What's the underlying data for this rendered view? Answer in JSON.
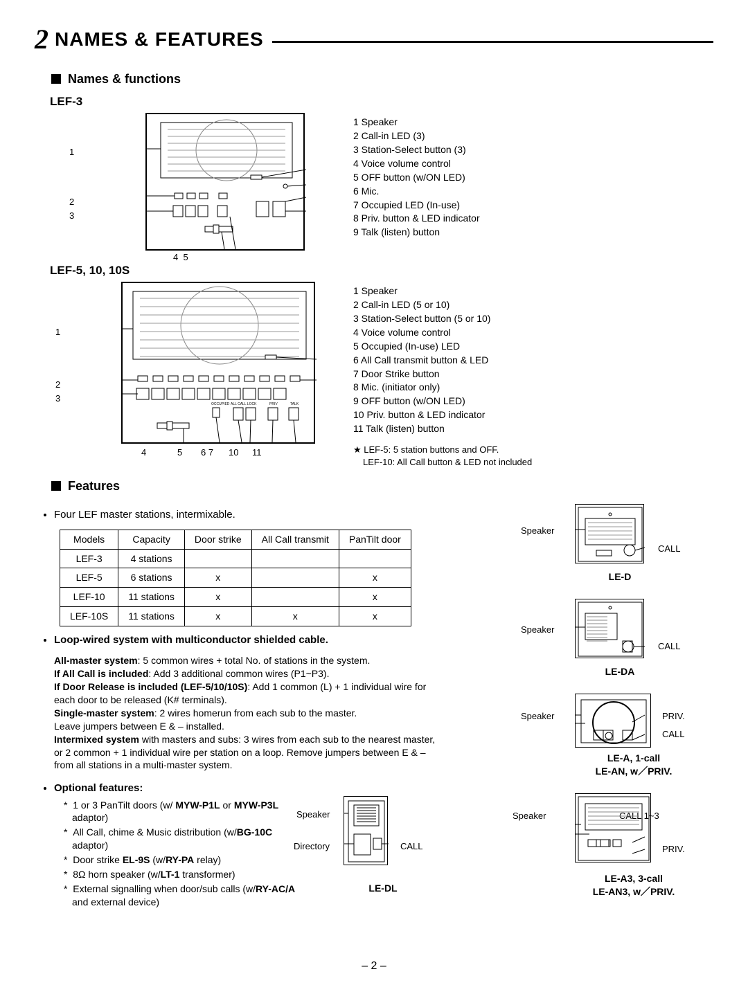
{
  "page": {
    "number_prefix": "2",
    "title": "NAMES & FEATURES",
    "page_footer": "– 2 –"
  },
  "section_names_functions": "Names & functions",
  "section_features": "Features",
  "lef3": {
    "label": "LEF-3",
    "parts": [
      "1  Speaker",
      "2  Call-in LED (3)",
      "3  Station-Select button (3)",
      "4  Voice volume control",
      "5  OFF button (w/ON LED)",
      "6  Mic.",
      "7  Occupied LED (In-use)",
      "8  Priv. button & LED indicator",
      "9  Talk (listen) button"
    ]
  },
  "lef5": {
    "label": "LEF-5, 10, 10S",
    "parts": [
      "1  Speaker",
      "2  Call-in LED (5 or 10)",
      "3  Station-Select button (5 or 10)",
      "4  Voice volume control",
      "5  Occupied (In-use) LED",
      "6  All Call transmit button & LED",
      "7  Door Strike button",
      "8  Mic. (initiator only)",
      "9  OFF button (w/ON LED)",
      "10 Priv. button & LED indicator",
      "11 Talk (listen) button"
    ],
    "note1": "★ LEF-5: 5 station buttons and OFF.",
    "note2": "LEF-10: All Call button & LED not included"
  },
  "features_intro": "Four LEF master stations, intermixable.",
  "model_table": {
    "headers": [
      "Models",
      "Capacity",
      "Door strike",
      "All Call transmit",
      "PanTilt door"
    ],
    "rows": [
      [
        "LEF-3",
        "4 stations",
        "",
        "",
        ""
      ],
      [
        "LEF-5",
        "6 stations",
        "x",
        "",
        "x"
      ],
      [
        "LEF-10",
        "11 stations",
        "x",
        "",
        "x"
      ],
      [
        "LEF-10S",
        "11 stations",
        "x",
        "x",
        "x"
      ]
    ]
  },
  "loop_hdr": "Loop-wired system with multiconductor shielded cable.",
  "loop_body": {
    "l1b": "All-master system",
    "l1": ": 5 common wires + total No. of stations in the system.",
    "l2b": "If All Call is included",
    "l2": ": Add 3 additional common wires (P1~P3).",
    "l3b": "If Door Release is included (LEF-5/10/10S)",
    "l3": ": Add 1 common (L) + 1 individual wire for each door to be released (K# terminals).",
    "l4b": "Single-master system",
    "l4": ": 2 wires homerun from each sub to the master.",
    "l5": "Leave jumpers between E & – installed.",
    "l6b": "Intermixed system",
    "l6": " with masters and subs: 3 wires from each sub to the nearest master, or 2 common + 1 individual wire per station on a loop. Remove jumpers between E & – from all stations in a multi-master system."
  },
  "optional_hdr": "Optional features:",
  "optional": [
    "1 or 3 PanTilt doors (w/ MYW-P1L or MYW-P3L adaptor)",
    "All Call, chime & Music distribution (w/BG-10C adaptor)",
    "Door strike EL-9S (w/RY-PA relay)",
    "8Ω horn speaker (w/LT-1 transformer)",
    "External signalling when door/sub calls (w/RY-AC/A and external device)"
  ],
  "opt_bold": {
    "0": [
      "MYW-P1L",
      "MYW-P3L"
    ],
    "1": [
      "BG-10C"
    ],
    "2": [
      "EL-9S",
      "RY-PA"
    ],
    "3": [
      "LT-1"
    ],
    "4": [
      "RY-AC/A"
    ]
  },
  "side_labels": {
    "speaker": "Speaker",
    "call": "CALL",
    "directory": "Directory",
    "priv": "PRIV.",
    "call13": "CALL 1~3"
  },
  "door_units": {
    "le_d": {
      "caption": "LE-D"
    },
    "le_da": {
      "caption": "LE-DA"
    },
    "le_a": {
      "caption": "LE-A, 1-call",
      "sub": "LE-AN, w／PRIV."
    },
    "le_dl": {
      "caption": "LE-DL"
    },
    "le_a3": {
      "caption": "LE-A3, 3-call",
      "sub": "LE-AN3, w／PRIV."
    }
  },
  "style": {
    "bg": "#ffffff",
    "ink": "#000000",
    "body_fontsize": 15,
    "small_fontsize": 13
  }
}
